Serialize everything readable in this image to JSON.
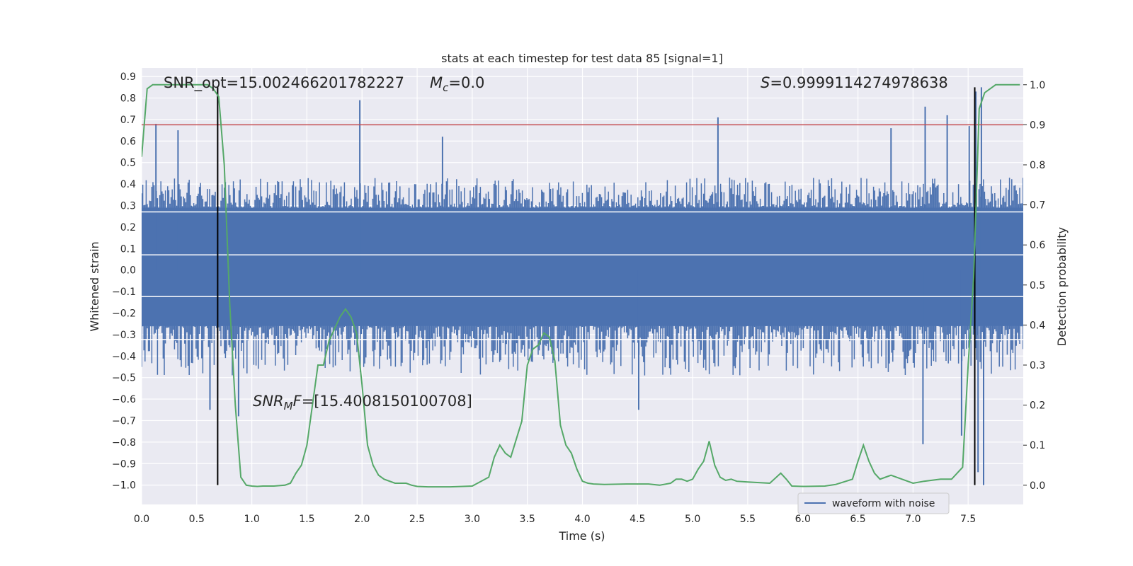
{
  "chart_data": {
    "type": "line",
    "title": "stats at each timestep for test data 85 [signal=1]",
    "xlabel": "Time (s)",
    "ylabel": "Whitened strain",
    "ylabel_right": "Detection probability",
    "xlim": [
      0.0,
      8.0
    ],
    "ylim": [
      -1.09,
      0.94
    ],
    "ylim_right": [
      -0.048,
      1.042
    ],
    "x_ticks": [
      0.0,
      0.5,
      1.0,
      1.5,
      2.0,
      2.5,
      3.0,
      3.5,
      4.0,
      4.5,
      5.0,
      5.5,
      6.0,
      6.5,
      7.0,
      7.5
    ],
    "x_tick_labels": [
      "0.0",
      "0.5",
      "1.0",
      "1.5",
      "2.0",
      "2.5",
      "3.0",
      "3.5",
      "4.0",
      "4.5",
      "5.0",
      "5.5",
      "6.0",
      "6.5",
      "7.0",
      "7.5"
    ],
    "y_ticks": [
      0.9,
      0.8,
      0.7,
      0.6,
      0.5,
      0.4,
      0.3,
      0.2,
      0.1,
      0.0,
      -0.1,
      -0.2,
      -0.3,
      -0.4,
      -0.5,
      -0.6,
      -0.7,
      -0.8,
      -0.9,
      -1.0
    ],
    "y_tick_labels": [
      "0.9",
      "0.8",
      "0.7",
      "0.6",
      "0.5",
      "0.4",
      "0.3",
      "0.2",
      "0.1",
      "0.0",
      "−0.1",
      "−0.2",
      "−0.3",
      "−0.4",
      "−0.5",
      "−0.6",
      "−0.7",
      "−0.8",
      "−0.9",
      "−1.0"
    ],
    "y_right_ticks": [
      1.0,
      0.9,
      0.8,
      0.7,
      0.6,
      0.5,
      0.4,
      0.3,
      0.2,
      0.1,
      0.0
    ],
    "y_right_tick_labels": [
      "1.0",
      "0.9",
      "0.8",
      "0.7",
      "0.6",
      "0.5",
      "0.4",
      "0.3",
      "0.2",
      "0.1",
      "0.0"
    ],
    "threshold": {
      "value": 0.9,
      "axis": "right",
      "color": "#c44e52"
    },
    "vertical_markers": [
      {
        "x": 0.69,
        "y_from": -1.0,
        "y_to": 0.85
      },
      {
        "x": 7.56,
        "y_from": -1.0,
        "y_to": 0.85
      }
    ],
    "waveform": {
      "name": "waveform with noise",
      "color": "#4c72b0",
      "core_band": [
        -0.26,
        0.29
      ],
      "typical_peak_pos": 0.38,
      "typical_peak_neg": -0.4,
      "spikes": [
        {
          "x": 0.13,
          "y": 0.68
        },
        {
          "x": 0.33,
          "y": 0.65
        },
        {
          "x": 1.98,
          "y": 0.79
        },
        {
          "x": 2.73,
          "y": 0.62
        },
        {
          "x": 5.23,
          "y": 0.71
        },
        {
          "x": 6.8,
          "y": 0.66
        },
        {
          "x": 7.11,
          "y": 0.76
        },
        {
          "x": 7.31,
          "y": 0.72
        },
        {
          "x": 7.51,
          "y": 0.67
        },
        {
          "x": 7.57,
          "y": 0.83
        },
        {
          "x": 7.62,
          "y": 0.85
        },
        {
          "x": 0.62,
          "y": -0.65
        },
        {
          "x": 0.88,
          "y": -0.68
        },
        {
          "x": 4.51,
          "y": -0.65
        },
        {
          "x": 7.09,
          "y": -0.81
        },
        {
          "x": 7.44,
          "y": -0.77
        },
        {
          "x": 7.59,
          "y": -0.94
        },
        {
          "x": 7.64,
          "y": -1.0
        }
      ]
    },
    "probability": {
      "name": "Detection probability",
      "color": "#55a868",
      "x": [
        0.0,
        0.05,
        0.1,
        0.2,
        0.3,
        0.4,
        0.5,
        0.6,
        0.65,
        0.7,
        0.75,
        0.8,
        0.85,
        0.9,
        0.95,
        1.0,
        1.05,
        1.1,
        1.2,
        1.3,
        1.35,
        1.4,
        1.45,
        1.5,
        1.55,
        1.6,
        1.65,
        1.7,
        1.75,
        1.8,
        1.85,
        1.9,
        1.95,
        2.0,
        2.05,
        2.1,
        2.15,
        2.2,
        2.3,
        2.4,
        2.45,
        2.5,
        2.6,
        2.8,
        3.0,
        3.15,
        3.2,
        3.25,
        3.3,
        3.35,
        3.45,
        3.5,
        3.55,
        3.6,
        3.65,
        3.7,
        3.75,
        3.8,
        3.85,
        3.9,
        3.95,
        4.0,
        4.05,
        4.1,
        4.2,
        4.4,
        4.6,
        4.7,
        4.8,
        4.85,
        4.9,
        4.95,
        5.0,
        5.05,
        5.1,
        5.15,
        5.2,
        5.25,
        5.3,
        5.35,
        5.4,
        5.5,
        5.7,
        5.8,
        5.85,
        5.9,
        6.0,
        6.2,
        6.3,
        6.45,
        6.5,
        6.55,
        6.6,
        6.65,
        6.7,
        6.75,
        6.8,
        6.9,
        7.0,
        7.1,
        7.25,
        7.35,
        7.45,
        7.5,
        7.55,
        7.6,
        7.65,
        7.7,
        7.75,
        7.8,
        7.9,
        7.97
      ],
      "y": [
        0.82,
        0.99,
        1.0,
        1.0,
        1.0,
        1.0,
        1.0,
        1.0,
        0.99,
        0.97,
        0.8,
        0.45,
        0.2,
        0.02,
        0.0,
        -0.002,
        -0.003,
        -0.002,
        -0.002,
        0.0,
        0.005,
        0.03,
        0.05,
        0.1,
        0.2,
        0.3,
        0.3,
        0.36,
        0.39,
        0.42,
        0.44,
        0.42,
        0.38,
        0.25,
        0.1,
        0.05,
        0.025,
        0.015,
        0.005,
        0.005,
        0.0,
        -0.003,
        -0.004,
        -0.004,
        -0.002,
        0.02,
        0.07,
        0.1,
        0.08,
        0.07,
        0.16,
        0.3,
        0.34,
        0.35,
        0.38,
        0.37,
        0.31,
        0.15,
        0.1,
        0.08,
        0.04,
        0.01,
        0.005,
        0.003,
        0.002,
        0.003,
        0.003,
        0.0,
        0.005,
        0.015,
        0.015,
        0.01,
        0.015,
        0.04,
        0.06,
        0.11,
        0.05,
        0.02,
        0.012,
        0.015,
        0.01,
        0.008,
        0.005,
        0.03,
        0.015,
        -0.002,
        -0.003,
        -0.002,
        0.002,
        0.015,
        0.06,
        0.1,
        0.06,
        0.03,
        0.015,
        0.02,
        0.025,
        0.015,
        0.005,
        0.01,
        0.015,
        0.015,
        0.045,
        0.3,
        0.52,
        0.94,
        0.98,
        0.99,
        1.0,
        1.0,
        1.0,
        1.0
      ]
    },
    "annotations": {
      "snr_opt": "SNR_opt=15.002466201782227",
      "mc_sym": "M",
      "mc_sub": "c",
      "mc_val": "=0.0",
      "s_sym": "S",
      "s_val": "=0.9999114274978638",
      "snrmf_sym": "SNR",
      "snrmf_sub": "M",
      "snrmf_sym2": "F",
      "snrmf_val": "=[15.4008150100708]"
    },
    "legend": {
      "label": "waveform with noise",
      "placement": "lower-right"
    }
  }
}
